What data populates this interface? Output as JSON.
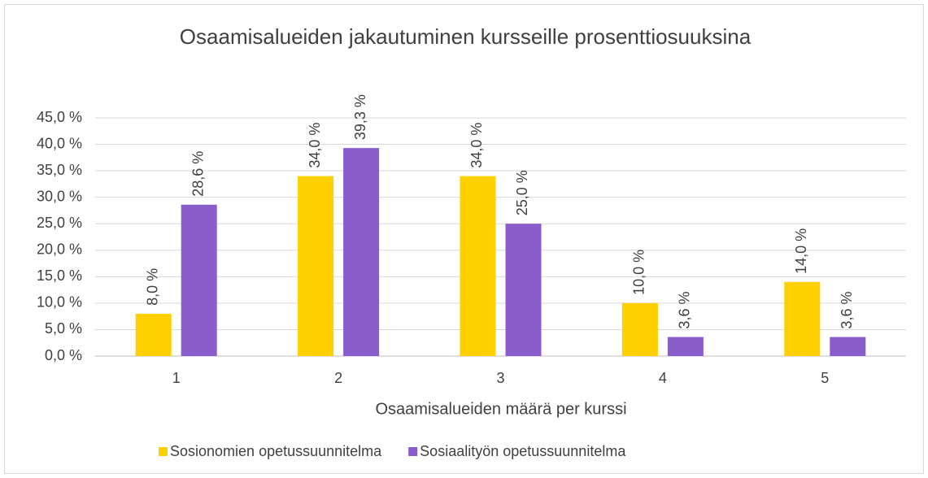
{
  "chart_data": {
    "type": "bar",
    "title": "Osaamisalueiden jakautuminen kursseille prosenttiosuuksina",
    "x_label": "Osaamisalueiden määrä per kurssi",
    "categories": [
      "1",
      "2",
      "3",
      "4",
      "5"
    ],
    "series": [
      {
        "name": "Sosionomien opetussuunnitelma",
        "color": "#ffd000",
        "values": [
          8.0,
          34.0,
          34.0,
          10.0,
          14.0
        ],
        "value_labels": [
          "8,0 %",
          "34,0 %",
          "34,0 %",
          "10,0 %",
          "14,0 %"
        ]
      },
      {
        "name": "Sosiaalityön opetussuunnitelma",
        "color": "#8a5ccc",
        "values": [
          28.6,
          39.3,
          25.0,
          3.6,
          3.6
        ],
        "value_labels": [
          "28,6 %",
          "39,3 %",
          "25,0 %",
          "3,6 %",
          "3,6 %"
        ]
      }
    ],
    "ylim": [
      0,
      45
    ],
    "yticks": [
      {
        "value": 0,
        "label": "0,0 %"
      },
      {
        "value": 5,
        "label": "5,0 %"
      },
      {
        "value": 10,
        "label": "10,0 %"
      },
      {
        "value": 15,
        "label": "15,0 %"
      },
      {
        "value": 20,
        "label": "20,0 %"
      },
      {
        "value": 25,
        "label": "25,0 %"
      },
      {
        "value": 30,
        "label": "30,0 %"
      },
      {
        "value": 35,
        "label": "35,0 %"
      },
      {
        "value": 40,
        "label": "40,0 %"
      },
      {
        "value": 45,
        "label": "45,0 %"
      }
    ],
    "grid": true,
    "legend": "bottom"
  }
}
